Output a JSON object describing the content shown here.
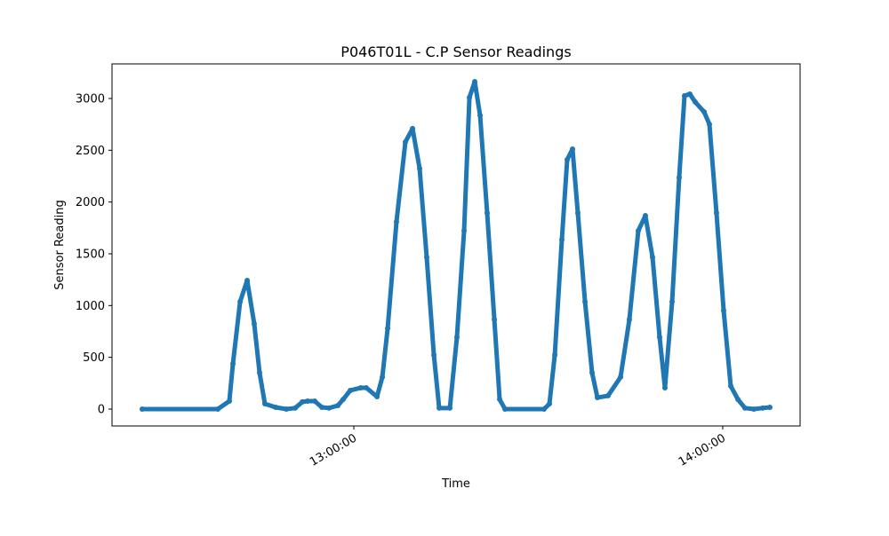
{
  "chart_data": {
    "type": "line",
    "title": "P046T01L - C.P Sensor Readings",
    "x_label": "Time",
    "y_label": "Sensor Reading",
    "x": [
      "12:25:35",
      "12:37:53",
      "12:39:45",
      "12:40:20",
      "12:41:30",
      "12:42:39",
      "12:43:48",
      "12:44:40",
      "12:45:32",
      "12:47:17",
      "12:49:01",
      "12:50:27",
      "12:51:37",
      "12:52:29",
      "12:53:38",
      "12:54:48",
      "12:55:57",
      "12:57:24",
      "12:58:16",
      "12:59:25",
      "13:01:09",
      "13:02:01",
      "13:03:46",
      "13:04:38",
      "13:05:30",
      "13:06:56",
      "13:08:23",
      "13:09:33",
      "13:10:42",
      "13:11:51",
      "13:13:01",
      "13:13:53",
      "13:15:37",
      "13:16:46",
      "13:17:56",
      "13:18:48",
      "13:19:40",
      "13:20:32",
      "13:21:41",
      "13:22:51",
      "13:23:43",
      "13:24:35",
      "13:30:56",
      "13:31:49",
      "13:32:41",
      "13:33:50",
      "13:34:42",
      "13:35:34",
      "13:36:26",
      "13:37:36",
      "13:38:45",
      "13:39:37",
      "13:41:21",
      "13:43:23",
      "13:44:49",
      "13:46:16",
      "13:47:25",
      "13:48:35",
      "13:49:44",
      "13:50:36",
      "13:51:46",
      "13:52:55",
      "13:53:47",
      "13:54:39",
      "13:55:31",
      "13:56:58",
      "13:57:50",
      "13:58:59",
      "14:00:09",
      "14:01:18",
      "14:02:28",
      "14:03:37",
      "14:05:04",
      "14:06:30",
      "14:07:40"
    ],
    "series": [
      {
        "name": "C.P",
        "color": "#1f77b4",
        "values": [
          0,
          0,
          77,
          437,
          1037,
          1243,
          823,
          351,
          51,
          17,
          0,
          10,
          69,
          77,
          77,
          17,
          10,
          34,
          94,
          180,
          206,
          206,
          120,
          309,
          780,
          1808,
          2580,
          2709,
          2323,
          1466,
          523,
          10,
          10,
          694,
          1723,
          3009,
          3163,
          2837,
          1894,
          866,
          94,
          0,
          0,
          51,
          523,
          1637,
          2409,
          2511,
          1894,
          1037,
          351,
          111,
          129,
          309,
          866,
          1723,
          1868,
          1466,
          694,
          206,
          1037,
          2237,
          3026,
          3043,
          2966,
          2871,
          2751,
          1894,
          951,
          223,
          94,
          10,
          0,
          10,
          17
        ]
      }
    ],
    "xlim": [
      "12:20:40",
      "14:12:35"
    ],
    "xticks": [
      "13:00:00",
      "14:00:00"
    ],
    "ylim": [
      -163,
      3334
    ],
    "yticks": [
      0,
      500,
      1000,
      1500,
      2000,
      2500,
      3000
    ]
  }
}
